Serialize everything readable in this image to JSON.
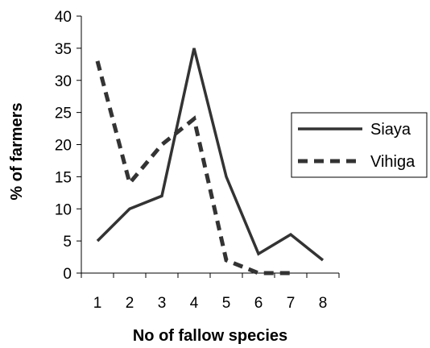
{
  "chart_data": {
    "type": "line",
    "title": "",
    "xlabel": "No of fallow species",
    "ylabel": "% of farmers",
    "x": [
      "1",
      "2",
      "3",
      "4",
      "5",
      "6",
      "7",
      "8"
    ],
    "ylim": [
      0,
      40
    ],
    "yticks": [
      "0",
      "5",
      "10",
      "15",
      "20",
      "25",
      "30",
      "35",
      "40"
    ],
    "grid": false,
    "legend_position": "right",
    "series": [
      {
        "name": "Siaya",
        "style": "solid",
        "color": "#333333",
        "values": [
          5,
          10,
          12,
          35,
          15,
          3,
          6,
          2
        ]
      },
      {
        "name": "Vihiga",
        "style": "dashed",
        "color": "#333333",
        "values": [
          33,
          14,
          20,
          24,
          2,
          0,
          0,
          null
        ]
      }
    ]
  }
}
